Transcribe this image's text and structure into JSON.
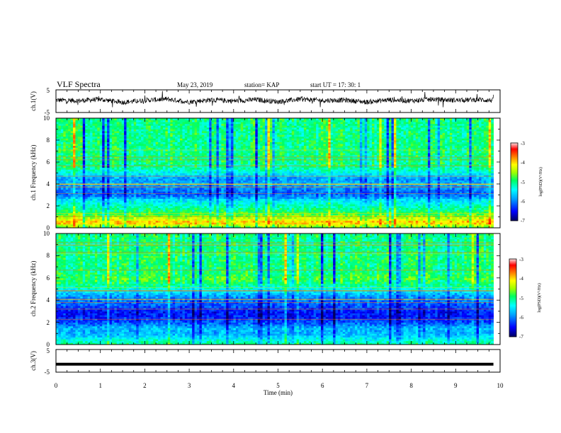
{
  "header": {
    "title": "VLF Spectra",
    "date": "May 23, 2019",
    "station": "station= KAP",
    "start": "start  UT  =   17: 30: 1"
  },
  "colors": {
    "spectral_scale": [
      "#0a0a6e",
      "#0000ff",
      "#0096ff",
      "#00ffff",
      "#00ff96",
      "#96ff00",
      "#ffff00",
      "#ff9600",
      "#ff0000",
      "#ffffff"
    ],
    "axis": "#000000",
    "trace": "#000000"
  },
  "chart_data": [
    {
      "type": "line",
      "panel": "ch1-waveform",
      "ylabel": "ch.1(V)",
      "ylim": [
        -5,
        5
      ],
      "y_ticks": [
        "5",
        "-5"
      ],
      "xlim": [
        0,
        10
      ],
      "series": [
        {
          "x": [
            0,
            0.5,
            1,
            1.5,
            2,
            2.5,
            3,
            3.5,
            4,
            4.5,
            5,
            5.5,
            6,
            6.5,
            7,
            7.5,
            8,
            8.5,
            9,
            9.5,
            9.85
          ],
          "values": [
            0.5,
            0.2,
            0.8,
            -0.5,
            0.4,
            0.9,
            -0.3,
            0.6,
            0.1,
            0.7,
            -0.2,
            0.9,
            0.3,
            0.5,
            -0.4,
            0.6,
            0.2,
            0.8,
            0.4,
            0.7,
            0.3
          ]
        }
      ]
    },
    {
      "type": "heatmap",
      "panel": "ch1-spectrogram",
      "ylabel": "ch.1 Frequency (kHz)",
      "ylim": [
        0,
        10
      ],
      "xlim": [
        0,
        10
      ],
      "data_xmax": 9.85,
      "y_ticks": [
        "0",
        "2",
        "4",
        "6",
        "8",
        "10"
      ],
      "band_profile": [
        {
          "f": 0.0,
          "level": 0.55
        },
        {
          "f": 0.5,
          "level": 0.78
        },
        {
          "f": 1.0,
          "level": 0.62
        },
        {
          "f": 1.5,
          "level": 0.52
        },
        {
          "f": 2.0,
          "level": 0.45
        },
        {
          "f": 2.5,
          "level": 0.38
        },
        {
          "f": 3.0,
          "level": 0.22
        },
        {
          "f": 3.5,
          "level": 0.25
        },
        {
          "f": 4.0,
          "level": 0.3
        },
        {
          "f": 4.5,
          "level": 0.28
        },
        {
          "f": 5.0,
          "level": 0.4
        },
        {
          "f": 5.5,
          "level": 0.48
        },
        {
          "f": 6.0,
          "level": 0.5
        },
        {
          "f": 6.5,
          "level": 0.5
        },
        {
          "f": 7.0,
          "level": 0.5
        },
        {
          "f": 8.0,
          "level": 0.5
        },
        {
          "f": 9.0,
          "level": 0.49
        },
        {
          "f": 10.0,
          "level": 0.5
        }
      ],
      "colorbar": {
        "label": "log(PSD)(V²/Hz)",
        "range": [
          -7,
          -3
        ],
        "ticks": [
          "-3",
          "-4",
          "-5",
          "-6",
          "-7"
        ]
      }
    },
    {
      "type": "heatmap",
      "panel": "ch2-spectrogram",
      "ylabel": "ch.2 Frequency (kHz)",
      "ylim": [
        0,
        10
      ],
      "xlim": [
        0,
        10
      ],
      "data_xmax": 9.85,
      "y_ticks": [
        "0",
        "2",
        "4",
        "6",
        "8",
        "10"
      ],
      "band_profile": [
        {
          "f": 0.0,
          "level": 0.5
        },
        {
          "f": 0.5,
          "level": 0.4
        },
        {
          "f": 1.0,
          "level": 0.3
        },
        {
          "f": 1.5,
          "level": 0.32
        },
        {
          "f": 2.0,
          "level": 0.2
        },
        {
          "f": 2.5,
          "level": 0.15
        },
        {
          "f": 3.0,
          "level": 0.14
        },
        {
          "f": 3.5,
          "level": 0.2
        },
        {
          "f": 4.0,
          "level": 0.24
        },
        {
          "f": 4.5,
          "level": 0.3
        },
        {
          "f": 5.0,
          "level": 0.42
        },
        {
          "f": 5.5,
          "level": 0.5
        },
        {
          "f": 6.0,
          "level": 0.55
        },
        {
          "f": 6.5,
          "level": 0.5
        },
        {
          "f": 7.0,
          "level": 0.5
        },
        {
          "f": 8.0,
          "level": 0.5
        },
        {
          "f": 9.0,
          "level": 0.48
        },
        {
          "f": 10.0,
          "level": 0.5
        }
      ],
      "colorbar": {
        "label": "log(PSD)(V²/Hz)",
        "range": [
          -7,
          -3
        ],
        "ticks": [
          "-3",
          "-4",
          "-5",
          "-6",
          "-7"
        ]
      }
    },
    {
      "type": "line",
      "panel": "ch3-waveform",
      "ylabel": "ch.3(V)",
      "ylim": [
        -5,
        5
      ],
      "y_ticks": [
        "5",
        "-5"
      ],
      "xlim": [
        0,
        10
      ],
      "series": [
        {
          "x": [
            0,
            9.85
          ],
          "values": [
            -1.5,
            -1.5
          ]
        }
      ]
    }
  ],
  "x_axis": {
    "label": "Time (min)",
    "ticks": [
      "0",
      "1",
      "2",
      "3",
      "4",
      "5",
      "6",
      "7",
      "8",
      "9",
      "10"
    ],
    "range": [
      0,
      10
    ]
  }
}
